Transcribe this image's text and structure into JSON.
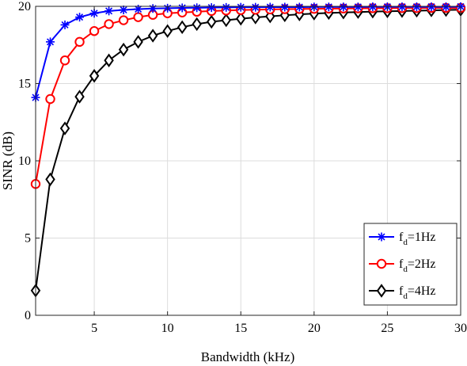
{
  "chart_data": {
    "type": "line",
    "title": "",
    "xlabel": "Bandwidth (kHz)",
    "ylabel": "SINR (dB)",
    "xlim": [
      1,
      30
    ],
    "ylim": [
      0,
      20
    ],
    "xticks": [
      5,
      10,
      15,
      20,
      25,
      30
    ],
    "yticks": [
      0,
      5,
      10,
      15,
      20
    ],
    "grid": true,
    "legend_position": "bottom-right",
    "x": [
      1,
      2,
      3,
      4,
      5,
      6,
      7,
      8,
      9,
      10,
      11,
      12,
      13,
      14,
      15,
      16,
      17,
      18,
      19,
      20,
      21,
      22,
      23,
      24,
      25,
      26,
      27,
      28,
      29,
      30
    ],
    "series": [
      {
        "name_main": "f",
        "name_sub": "d",
        "name_rest": "=1Hz",
        "color": "#0000ff",
        "marker": "asterisk",
        "values": [
          14.1,
          17.7,
          18.8,
          19.3,
          19.55,
          19.7,
          19.77,
          19.82,
          19.86,
          19.88,
          19.9,
          19.91,
          19.92,
          19.93,
          19.94,
          19.94,
          19.95,
          19.95,
          19.95,
          19.96,
          19.96,
          19.96,
          19.96,
          19.97,
          19.97,
          19.97,
          19.97,
          19.97,
          19.97,
          19.98
        ]
      },
      {
        "name_main": "f",
        "name_sub": "d",
        "name_rest": "=2Hz",
        "color": "#ff0000",
        "marker": "circle",
        "values": [
          8.5,
          14.0,
          16.5,
          17.7,
          18.4,
          18.85,
          19.1,
          19.3,
          19.45,
          19.55,
          19.6,
          19.65,
          19.7,
          19.73,
          19.76,
          19.78,
          19.8,
          19.82,
          19.83,
          19.84,
          19.85,
          19.86,
          19.87,
          19.88,
          19.88,
          19.89,
          19.89,
          19.9,
          19.9,
          19.9
        ]
      },
      {
        "name_main": "f",
        "name_sub": "d",
        "name_rest": "=4Hz",
        "color": "#000000",
        "marker": "diamond",
        "values": [
          1.6,
          8.8,
          12.1,
          14.15,
          15.5,
          16.5,
          17.2,
          17.7,
          18.1,
          18.4,
          18.65,
          18.85,
          19.0,
          19.1,
          19.2,
          19.28,
          19.35,
          19.42,
          19.48,
          19.53,
          19.57,
          19.6,
          19.63,
          19.66,
          19.68,
          19.7,
          19.72,
          19.74,
          19.76,
          19.78
        ]
      }
    ]
  }
}
